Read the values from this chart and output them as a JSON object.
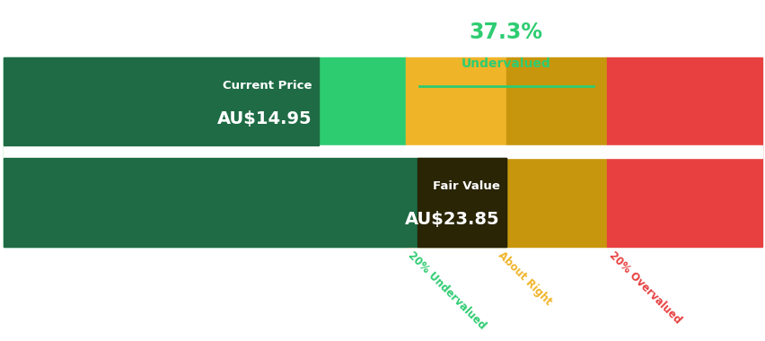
{
  "current_price": 14.95,
  "fair_value": 23.85,
  "pct_undervalued": 37.3,
  "label_undervalued": "Undervalued",
  "current_price_label": "Current Price",
  "current_price_text": "AU$14.95",
  "fair_value_label": "Fair Value",
  "fair_value_text": "AU$23.85",
  "threshold_low_factor": 0.8,
  "threshold_high_factor": 1.2,
  "x_max": 36.0,
  "color_dark_green": "#1e6b45",
  "color_light_green": "#2ecc71",
  "color_yellow": "#f0b429",
  "color_dark_yellow": "#c8960c",
  "color_red": "#e84040",
  "color_label_green": "#2ecc71",
  "color_label_yellow": "#f0b429",
  "color_label_red": "#e84040",
  "color_fv_box": "#2a1f00",
  "label_20_under": "20% Undervalued",
  "label_about_right": "About Right",
  "label_20_over": "20% Overvalued",
  "bg_color": "#ffffff"
}
